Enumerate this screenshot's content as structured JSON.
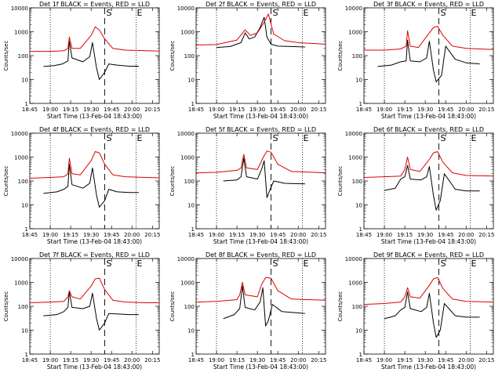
{
  "panel_order": [
    "1f",
    "2f",
    "3f",
    "4f",
    "5f",
    "6f",
    "7f",
    "8f",
    "9f"
  ],
  "chart_data": [
    {
      "type": "line",
      "title": "Det 1f BLACK = Events, RED = LLD",
      "xlabel": "Start Time (13-Feb-04 18:43:00)",
      "ylabel": "Counts/sec",
      "yscale": "log",
      "ylim": [
        1,
        10000
      ],
      "yticks": [
        "1",
        "10",
        "100",
        "1000",
        "10000"
      ],
      "xticks": [
        "18:45",
        "19:00",
        "19:15",
        "19:30",
        "19:45",
        "20:00",
        "20:15"
      ],
      "xlim": [
        "18:45",
        "20:20"
      ],
      "dotted_lines": [
        "19:00",
        "20:03"
      ],
      "dashed_line": "19:40",
      "markers": [
        "S",
        "E"
      ],
      "series": [
        {
          "name": "BLACK = Events",
          "color": "#000000",
          "x": [
            "18:55",
            "19:03",
            "19:09",
            "19:13",
            "19:14",
            "19:16",
            "19:24",
            "19:29",
            "19:31",
            "19:34",
            "19:36",
            "19:40",
            "19:43",
            "19:49",
            "19:58",
            "20:05"
          ],
          "values": [
            35,
            38,
            45,
            60,
            400,
            80,
            55,
            90,
            350,
            30,
            10,
            20,
            45,
            40,
            36,
            36
          ]
        },
        {
          "name": "RED = LLD",
          "color": "#dd0000",
          "x": [
            "18:45",
            "19:00",
            "19:10",
            "19:13",
            "19:14",
            "19:16",
            "19:22",
            "19:30",
            "19:33",
            "19:36",
            "19:40",
            "19:46",
            "19:55",
            "20:10",
            "20:20"
          ],
          "values": [
            150,
            150,
            160,
            200,
            600,
            200,
            200,
            700,
            1600,
            1200,
            500,
            200,
            170,
            160,
            155
          ]
        }
      ]
    },
    {
      "type": "line",
      "title": "Det 2f BLACK = Events, RED = LLD",
      "xlabel": "Start Time (13-Feb-04 18:43:00)",
      "ylabel": "Counts/sec",
      "yscale": "log",
      "ylim": [
        1,
        10000
      ],
      "yticks": [
        "1",
        "10",
        "100",
        "1000",
        "10000"
      ],
      "xticks": [
        "18:45",
        "19:00",
        "19:15",
        "19:30",
        "19:45",
        "20:00",
        "20:15"
      ],
      "xlim": [
        "18:45",
        "20:20"
      ],
      "dotted_lines": [
        "19:00",
        "20:03"
      ],
      "dashed_line": "19:40",
      "markers": [
        "S",
        "E"
      ],
      "series": [
        {
          "name": "BLACK = Events",
          "color": "#000000",
          "x": [
            "19:00",
            "19:10",
            "19:18",
            "19:21",
            "19:24",
            "19:28",
            "19:32",
            "19:35",
            "19:37",
            "19:40",
            "19:45",
            "19:55",
            "20:05"
          ],
          "values": [
            220,
            240,
            350,
            900,
            500,
            600,
            1500,
            4000,
            600,
            300,
            250,
            240,
            230
          ]
        },
        {
          "name": "RED = LLD",
          "color": "#dd0000",
          "x": [
            "18:45",
            "19:00",
            "19:15",
            "19:21",
            "19:25",
            "19:30",
            "19:35",
            "19:38",
            "19:42",
            "19:50",
            "20:00",
            "20:20"
          ],
          "values": [
            280,
            290,
            450,
            1200,
            700,
            900,
            2500,
            5500,
            800,
            420,
            350,
            300
          ]
        }
      ]
    },
    {
      "type": "line",
      "title": "Det 3f BLACK = Events, RED = LLD",
      "xlabel": "Start Time (13-Feb-04 18:43:00)",
      "ylabel": "Counts/sec",
      "yscale": "log",
      "ylim": [
        1,
        10000
      ],
      "yticks": [
        "1",
        "10",
        "100",
        "1000",
        "10000"
      ],
      "xticks": [
        "18:45",
        "19:00",
        "19:15",
        "19:30",
        "19:45",
        "20:00",
        "20:15"
      ],
      "xlim": [
        "18:45",
        "20:20"
      ],
      "dotted_lines": [
        "19:00",
        "20:03"
      ],
      "dashed_line": "19:40",
      "markers": [
        "S",
        "E"
      ],
      "series": [
        {
          "name": "BLACK = Events",
          "color": "#000000",
          "x": [
            "18:55",
            "19:05",
            "19:12",
            "19:16",
            "19:17",
            "19:19",
            "19:26",
            "19:31",
            "19:33",
            "19:36",
            "19:38",
            "19:42",
            "19:45",
            "19:52",
            "20:00",
            "20:10"
          ],
          "values": [
            35,
            40,
            55,
            60,
            450,
            60,
            55,
            80,
            400,
            25,
            8,
            15,
            250,
            70,
            50,
            45
          ]
        },
        {
          "name": "RED = LLD",
          "color": "#dd0000",
          "x": [
            "18:45",
            "19:00",
            "19:12",
            "19:16",
            "19:17",
            "19:19",
            "19:25",
            "19:33",
            "19:36",
            "19:39",
            "19:43",
            "19:50",
            "20:00",
            "20:20"
          ],
          "values": [
            170,
            170,
            190,
            250,
            1100,
            250,
            220,
            900,
            1500,
            1700,
            700,
            250,
            200,
            180
          ]
        }
      ]
    },
    {
      "type": "line",
      "title": "Det 4f BLACK = Events, RED = LLD",
      "xlabel": "Start Time (13-Feb-04 18:43:00)",
      "ylabel": "Counts/sec",
      "yscale": "log",
      "ylim": [
        1,
        10000
      ],
      "yticks": [
        "1",
        "10",
        "100",
        "1000",
        "10000"
      ],
      "xticks": [
        "18:45",
        "19:00",
        "19:15",
        "19:30",
        "19:45",
        "20:00",
        "20:15"
      ],
      "xlim": [
        "18:45",
        "20:20"
      ],
      "dotted_lines": [
        "19:00",
        "20:03"
      ],
      "dashed_line": "19:40",
      "markers": [
        "S",
        "E"
      ],
      "series": [
        {
          "name": "BLACK = Events",
          "color": "#000000",
          "x": [
            "18:55",
            "19:05",
            "19:10",
            "19:13",
            "19:14",
            "19:16",
            "19:24",
            "19:29",
            "19:31",
            "19:34",
            "19:36",
            "19:40",
            "19:43",
            "19:49",
            "19:58",
            "20:05"
          ],
          "values": [
            30,
            35,
            45,
            60,
            500,
            70,
            50,
            80,
            350,
            25,
            8,
            15,
            45,
            35,
            33,
            33
          ]
        },
        {
          "name": "RED = LLD",
          "color": "#dd0000",
          "x": [
            "18:45",
            "19:00",
            "19:10",
            "19:13",
            "19:14",
            "19:16",
            "19:22",
            "19:30",
            "19:33",
            "19:36",
            "19:40",
            "19:46",
            "19:55",
            "20:10",
            "20:20"
          ],
          "values": [
            130,
            140,
            150,
            200,
            900,
            200,
            180,
            700,
            1700,
            1500,
            500,
            180,
            150,
            140,
            135
          ]
        }
      ]
    },
    {
      "type": "line",
      "title": "Det 5f BLACK = Events, RED = LLD",
      "xlabel": "Start Time (13-Feb-04 18:43:00)",
      "ylabel": "Counts/sec",
      "yscale": "log",
      "ylim": [
        1,
        10000
      ],
      "yticks": [
        "1",
        "10",
        "100",
        "1000",
        "10000"
      ],
      "xticks": [
        "18:45",
        "19:00",
        "19:15",
        "19:30",
        "19:45",
        "20:00",
        "20:15"
      ],
      "xlim": [
        "18:45",
        "20:20"
      ],
      "dotted_lines": [
        "19:00",
        "20:03"
      ],
      "dashed_line": "19:40",
      "markers": [
        "S",
        "E"
      ],
      "series": [
        {
          "name": "BLACK = Events",
          "color": "#000000",
          "x": [
            "19:05",
            "19:15",
            "19:18",
            "19:20",
            "19:22",
            "19:30",
            "19:33",
            "19:35",
            "19:37",
            "19:39",
            "19:42",
            "19:50",
            "20:05"
          ],
          "values": [
            100,
            110,
            150,
            900,
            150,
            120,
            300,
            700,
            20,
            40,
            100,
            80,
            75
          ]
        },
        {
          "name": "RED = LLD",
          "color": "#dd0000",
          "x": [
            "18:45",
            "19:00",
            "19:15",
            "19:18",
            "19:20",
            "19:22",
            "19:30",
            "19:34",
            "19:37",
            "19:40",
            "19:45",
            "19:55",
            "20:20"
          ],
          "values": [
            220,
            230,
            280,
            350,
            1300,
            350,
            300,
            900,
            1800,
            1600,
            500,
            250,
            220
          ]
        }
      ]
    },
    {
      "type": "line",
      "title": "Det 6f BLACK = Events, RED = LLD",
      "xlabel": "Start Time (13-Feb-04 18:43:00)",
      "ylabel": "Counts/sec",
      "yscale": "log",
      "ylim": [
        1,
        10000
      ],
      "yticks": [
        "1",
        "10",
        "100",
        "1000",
        "10000"
      ],
      "xticks": [
        "18:45",
        "19:00",
        "19:15",
        "19:30",
        "19:45",
        "20:00",
        "20:15"
      ],
      "xlim": [
        "18:45",
        "20:20"
      ],
      "dotted_lines": [
        "19:00",
        "20:03"
      ],
      "dashed_line": "19:40",
      "markers": [
        "S",
        "E"
      ],
      "series": [
        {
          "name": "BLACK = Events",
          "color": "#000000",
          "x": [
            "19:00",
            "19:08",
            "19:12",
            "19:15",
            "19:17",
            "19:19",
            "19:27",
            "19:31",
            "19:33",
            "19:36",
            "19:38",
            "19:41",
            "19:44",
            "19:52",
            "20:00",
            "20:10"
          ],
          "values": [
            40,
            50,
            120,
            150,
            450,
            120,
            110,
            150,
            400,
            25,
            6,
            15,
            200,
            45,
            38,
            38
          ]
        },
        {
          "name": "RED = LLD",
          "color": "#dd0000",
          "x": [
            "18:45",
            "19:00",
            "19:12",
            "19:15",
            "19:17",
            "19:19",
            "19:26",
            "19:33",
            "19:36",
            "19:39",
            "19:43",
            "19:50",
            "20:00",
            "20:20"
          ],
          "values": [
            140,
            150,
            160,
            300,
            1000,
            300,
            250,
            800,
            1500,
            1700,
            600,
            220,
            170,
            160
          ]
        }
      ]
    },
    {
      "type": "line",
      "title": "Det 7f BLACK = Events, RED = LLD",
      "xlabel": "Start Time (13-Feb-04 18:43:00)",
      "ylabel": "Counts/sec",
      "yscale": "log",
      "ylim": [
        1,
        10000
      ],
      "yticks": [
        "1",
        "10",
        "100",
        "1000",
        "10000"
      ],
      "xticks": [
        "18:45",
        "19:00",
        "19:15",
        "19:30",
        "19:45",
        "20:00",
        "20:15"
      ],
      "xlim": [
        "18:45",
        "20:20"
      ],
      "dotted_lines": [
        "19:00",
        "20:03"
      ],
      "dashed_line": "19:40",
      "markers": [
        "S",
        "E"
      ],
      "series": [
        {
          "name": "BLACK = Events",
          "color": "#000000",
          "x": [
            "18:55",
            "19:05",
            "19:10",
            "19:13",
            "19:14",
            "19:16",
            "19:24",
            "19:29",
            "19:31",
            "19:34",
            "19:36",
            "19:40",
            "19:43",
            "19:49",
            "19:58",
            "20:05"
          ],
          "values": [
            40,
            45,
            60,
            90,
            400,
            90,
            80,
            100,
            350,
            30,
            10,
            20,
            50,
            48,
            45,
            45
          ]
        },
        {
          "name": "RED = LLD",
          "color": "#dd0000",
          "x": [
            "18:45",
            "19:00",
            "19:10",
            "19:13",
            "19:14",
            "19:16",
            "19:22",
            "19:30",
            "19:33",
            "19:36",
            "19:40",
            "19:46",
            "19:55",
            "20:10",
            "20:20"
          ],
          "values": [
            140,
            150,
            160,
            250,
            450,
            250,
            200,
            700,
            1400,
            1500,
            500,
            180,
            150,
            140,
            140
          ]
        }
      ]
    },
    {
      "type": "line",
      "title": "Det 8f BLACK = Events, RED = LLD",
      "xlabel": "Start Time (13-Feb-04 18:43:00)",
      "ylabel": "Counts/sec",
      "yscale": "log",
      "ylim": [
        1,
        10000
      ],
      "yticks": [
        "1",
        "10",
        "100",
        "1000",
        "10000"
      ],
      "xticks": [
        "18:45",
        "19:00",
        "19:15",
        "19:30",
        "19:45",
        "20:00",
        "20:15"
      ],
      "xlim": [
        "18:45",
        "20:20"
      ],
      "dotted_lines": [
        "19:00",
        "20:03"
      ],
      "dashed_line": "19:40",
      "markers": [
        "S",
        "E"
      ],
      "series": [
        {
          "name": "BLACK = Events",
          "color": "#000000",
          "x": [
            "19:05",
            "19:13",
            "19:17",
            "19:19",
            "19:21",
            "19:28",
            "19:32",
            "19:34",
            "19:36",
            "19:38",
            "19:41",
            "19:48",
            "20:05"
          ],
          "values": [
            30,
            45,
            80,
            700,
            90,
            70,
            150,
            600,
            15,
            25,
            120,
            60,
            50
          ]
        },
        {
          "name": "RED = LLD",
          "color": "#dd0000",
          "x": [
            "18:45",
            "19:00",
            "19:15",
            "19:17",
            "19:19",
            "19:21",
            "19:30",
            "19:33",
            "19:36",
            "19:40",
            "19:45",
            "19:55",
            "20:20"
          ],
          "values": [
            150,
            160,
            190,
            300,
            1000,
            300,
            250,
            800,
            1600,
            1500,
            450,
            200,
            180
          ]
        }
      ]
    },
    {
      "type": "line",
      "title": "Det 9f BLACK = Events, RED = LLD",
      "xlabel": "Start Time (13-Feb-04 18:43:00)",
      "ylabel": "Counts/sec",
      "yscale": "log",
      "ylim": [
        1,
        10000
      ],
      "yticks": [
        "1",
        "10",
        "100",
        "1000",
        "10000"
      ],
      "xticks": [
        "18:45",
        "19:00",
        "19:15",
        "19:30",
        "19:45",
        "20:00",
        "20:15"
      ],
      "xlim": [
        "18:45",
        "20:20"
      ],
      "dotted_lines": [
        "19:00",
        "20:03"
      ],
      "dashed_line": "19:40",
      "markers": [
        "S",
        "E"
      ],
      "series": [
        {
          "name": "BLACK = Events",
          "color": "#000000",
          "x": [
            "19:00",
            "19:08",
            "19:12",
            "19:15",
            "19:17",
            "19:19",
            "19:27",
            "19:31",
            "19:33",
            "19:36",
            "19:38",
            "19:41",
            "19:44",
            "19:52",
            "20:00",
            "20:10"
          ],
          "values": [
            30,
            40,
            70,
            90,
            400,
            80,
            60,
            90,
            350,
            20,
            5,
            10,
            130,
            40,
            35,
            35
          ]
        },
        {
          "name": "RED = LLD",
          "color": "#dd0000",
          "x": [
            "18:45",
            "19:00",
            "19:12",
            "19:15",
            "19:17",
            "19:19",
            "19:26",
            "19:33",
            "19:36",
            "19:39",
            "19:43",
            "19:50",
            "20:00",
            "20:20"
          ],
          "values": [
            120,
            130,
            150,
            250,
            600,
            250,
            220,
            750,
            1400,
            1600,
            550,
            200,
            160,
            150
          ]
        }
      ]
    }
  ]
}
